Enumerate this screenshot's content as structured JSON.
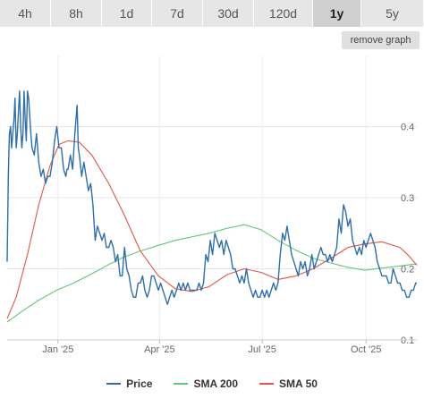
{
  "timeframe_tabs": [
    {
      "label": "4h",
      "active": false
    },
    {
      "label": "8h",
      "active": false
    },
    {
      "label": "1d",
      "active": false
    },
    {
      "label": "7d",
      "active": false
    },
    {
      "label": "30d",
      "active": false
    },
    {
      "label": "120d",
      "active": false
    },
    {
      "label": "1y",
      "active": true
    },
    {
      "label": "5y",
      "active": false
    }
  ],
  "remove_graph_label": "remove graph",
  "colors": {
    "price": "#2f6ea8",
    "sma200": "#63c77a",
    "sma50": "#e05547"
  },
  "chart_data": {
    "type": "line",
    "ylim": [
      0.1,
      0.5
    ],
    "yticks": [
      0.1,
      0.2,
      0.3,
      0.4
    ],
    "ytick_labels": [
      "0.1",
      "0.2",
      "0.3",
      "0.4"
    ],
    "xlim": [
      "2024-11-17",
      "2025-11-15"
    ],
    "xticks": [
      "2025-01-01",
      "2025-04-01",
      "2025-07-01",
      "2025-10-01"
    ],
    "xtick_labels": [
      "Jan '25",
      "Apr '25",
      "Jul '25",
      "Oct '25"
    ],
    "grid": true,
    "legend": "bottom",
    "series": [
      {
        "name": "Price",
        "color": "#2f6ea8",
        "points": [
          [
            "2024-11-17",
            0.21
          ],
          [
            "2024-11-18",
            0.33
          ],
          [
            "2024-11-19",
            0.39
          ],
          [
            "2024-11-20",
            0.4
          ],
          [
            "2024-11-21",
            0.37
          ],
          [
            "2024-11-22",
            0.39
          ],
          [
            "2024-11-23",
            0.41
          ],
          [
            "2024-11-24",
            0.44
          ],
          [
            "2024-11-25",
            0.37
          ],
          [
            "2024-11-26",
            0.39
          ],
          [
            "2024-11-27",
            0.42
          ],
          [
            "2024-11-28",
            0.45
          ],
          [
            "2024-11-29",
            0.4
          ],
          [
            "2024-11-30",
            0.37
          ],
          [
            "2024-12-01",
            0.39
          ],
          [
            "2024-12-02",
            0.45
          ],
          [
            "2024-12-03",
            0.41
          ],
          [
            "2024-12-04",
            0.38
          ],
          [
            "2024-12-05",
            0.45
          ],
          [
            "2024-12-06",
            0.44
          ],
          [
            "2024-12-08",
            0.39
          ],
          [
            "2024-12-09",
            0.37
          ],
          [
            "2024-12-11",
            0.36
          ],
          [
            "2024-12-13",
            0.39
          ],
          [
            "2024-12-15",
            0.35
          ],
          [
            "2024-12-17",
            0.33
          ],
          [
            "2024-12-19",
            0.34
          ],
          [
            "2024-12-21",
            0.32
          ],
          [
            "2024-12-23",
            0.33
          ],
          [
            "2024-12-25",
            0.33
          ],
          [
            "2024-12-27",
            0.35
          ],
          [
            "2024-12-29",
            0.38
          ],
          [
            "2024-12-31",
            0.4
          ],
          [
            "2025-01-02",
            0.37
          ],
          [
            "2025-01-04",
            0.37
          ],
          [
            "2025-01-06",
            0.34
          ],
          [
            "2025-01-08",
            0.33
          ],
          [
            "2025-01-09",
            0.34
          ],
          [
            "2025-01-10",
            0.34
          ],
          [
            "2025-01-12",
            0.36
          ],
          [
            "2025-01-14",
            0.34
          ],
          [
            "2025-01-16",
            0.39
          ],
          [
            "2025-01-18",
            0.43
          ],
          [
            "2025-01-19",
            0.37
          ],
          [
            "2025-01-20",
            0.36
          ],
          [
            "2025-01-22",
            0.33
          ],
          [
            "2025-01-24",
            0.35
          ],
          [
            "2025-01-26",
            0.33
          ],
          [
            "2025-01-28",
            0.31
          ],
          [
            "2025-01-30",
            0.32
          ],
          [
            "2025-02-01",
            0.29
          ],
          [
            "2025-02-03",
            0.24
          ],
          [
            "2025-02-05",
            0.26
          ],
          [
            "2025-02-07",
            0.25
          ],
          [
            "2025-02-09",
            0.24
          ],
          [
            "2025-02-11",
            0.25
          ],
          [
            "2025-02-13",
            0.23
          ],
          [
            "2025-02-15",
            0.23
          ],
          [
            "2025-02-17",
            0.24
          ],
          [
            "2025-02-19",
            0.23
          ],
          [
            "2025-02-21",
            0.21
          ],
          [
            "2025-02-23",
            0.22
          ],
          [
            "2025-02-25",
            0.19
          ],
          [
            "2025-02-27",
            0.19
          ],
          [
            "2025-03-01",
            0.23
          ],
          [
            "2025-03-03",
            0.2
          ],
          [
            "2025-03-05",
            0.19
          ],
          [
            "2025-03-07",
            0.17
          ],
          [
            "2025-03-09",
            0.16
          ],
          [
            "2025-03-11",
            0.16
          ],
          [
            "2025-03-13",
            0.18
          ],
          [
            "2025-03-15",
            0.18
          ],
          [
            "2025-03-17",
            0.19
          ],
          [
            "2025-03-19",
            0.17
          ],
          [
            "2025-03-21",
            0.16
          ],
          [
            "2025-03-23",
            0.17
          ],
          [
            "2025-03-25",
            0.19
          ],
          [
            "2025-03-27",
            0.19
          ],
          [
            "2025-03-29",
            0.18
          ],
          [
            "2025-03-31",
            0.17
          ],
          [
            "2025-04-02",
            0.18
          ],
          [
            "2025-04-04",
            0.17
          ],
          [
            "2025-04-06",
            0.16
          ],
          [
            "2025-04-08",
            0.15
          ],
          [
            "2025-04-10",
            0.16
          ],
          [
            "2025-04-12",
            0.17
          ],
          [
            "2025-04-14",
            0.16
          ],
          [
            "2025-04-16",
            0.17
          ],
          [
            "2025-04-18",
            0.18
          ],
          [
            "2025-04-20",
            0.17
          ],
          [
            "2025-04-22",
            0.18
          ],
          [
            "2025-04-24",
            0.17
          ],
          [
            "2025-04-26",
            0.18
          ],
          [
            "2025-04-28",
            0.17
          ],
          [
            "2025-04-30",
            0.17
          ],
          [
            "2025-05-02",
            0.17
          ],
          [
            "2025-05-04",
            0.17
          ],
          [
            "2025-05-06",
            0.18
          ],
          [
            "2025-05-08",
            0.17
          ],
          [
            "2025-05-10",
            0.18
          ],
          [
            "2025-05-12",
            0.22
          ],
          [
            "2025-05-14",
            0.21
          ],
          [
            "2025-05-16",
            0.24
          ],
          [
            "2025-05-18",
            0.22
          ],
          [
            "2025-05-20",
            0.25
          ],
          [
            "2025-05-22",
            0.24
          ],
          [
            "2025-05-24",
            0.23
          ],
          [
            "2025-05-26",
            0.24
          ],
          [
            "2025-05-28",
            0.22
          ],
          [
            "2025-05-30",
            0.24
          ],
          [
            "2025-06-01",
            0.23
          ],
          [
            "2025-06-03",
            0.22
          ],
          [
            "2025-06-05",
            0.2
          ],
          [
            "2025-06-07",
            0.2
          ],
          [
            "2025-06-09",
            0.19
          ],
          [
            "2025-06-11",
            0.18
          ],
          [
            "2025-06-13",
            0.19
          ],
          [
            "2025-06-15",
            0.18
          ],
          [
            "2025-06-17",
            0.2
          ],
          [
            "2025-06-19",
            0.18
          ],
          [
            "2025-06-21",
            0.17
          ],
          [
            "2025-06-23",
            0.16
          ],
          [
            "2025-06-25",
            0.17
          ],
          [
            "2025-06-27",
            0.16
          ],
          [
            "2025-06-29",
            0.16
          ],
          [
            "2025-07-01",
            0.17
          ],
          [
            "2025-07-03",
            0.16
          ],
          [
            "2025-07-05",
            0.17
          ],
          [
            "2025-07-07",
            0.16
          ],
          [
            "2025-07-09",
            0.17
          ],
          [
            "2025-07-11",
            0.18
          ],
          [
            "2025-07-13",
            0.17
          ],
          [
            "2025-07-15",
            0.18
          ],
          [
            "2025-07-17",
            0.22
          ],
          [
            "2025-07-19",
            0.25
          ],
          [
            "2025-07-21",
            0.24
          ],
          [
            "2025-07-23",
            0.26
          ],
          [
            "2025-07-25",
            0.24
          ],
          [
            "2025-07-27",
            0.22
          ],
          [
            "2025-07-29",
            0.21
          ],
          [
            "2025-07-31",
            0.2
          ],
          [
            "2025-08-02",
            0.19
          ],
          [
            "2025-08-04",
            0.21
          ],
          [
            "2025-08-06",
            0.2
          ],
          [
            "2025-08-08",
            0.21
          ],
          [
            "2025-08-10",
            0.19
          ],
          [
            "2025-08-12",
            0.2
          ],
          [
            "2025-08-14",
            0.22
          ],
          [
            "2025-08-16",
            0.2
          ],
          [
            "2025-08-18",
            0.21
          ],
          [
            "2025-08-20",
            0.22
          ],
          [
            "2025-08-22",
            0.23
          ],
          [
            "2025-08-24",
            0.22
          ],
          [
            "2025-08-26",
            0.22
          ],
          [
            "2025-08-28",
            0.21
          ],
          [
            "2025-08-30",
            0.22
          ],
          [
            "2025-09-01",
            0.21
          ],
          [
            "2025-09-03",
            0.22
          ],
          [
            "2025-09-05",
            0.23
          ],
          [
            "2025-09-07",
            0.27
          ],
          [
            "2025-09-09",
            0.25
          ],
          [
            "2025-09-11",
            0.29
          ],
          [
            "2025-09-13",
            0.28
          ],
          [
            "2025-09-15",
            0.26
          ],
          [
            "2025-09-17",
            0.27
          ],
          [
            "2025-09-19",
            0.24
          ],
          [
            "2025-09-21",
            0.23
          ],
          [
            "2025-09-23",
            0.22
          ],
          [
            "2025-09-25",
            0.23
          ],
          [
            "2025-09-27",
            0.22
          ],
          [
            "2025-09-29",
            0.24
          ],
          [
            "2025-10-01",
            0.23
          ],
          [
            "2025-10-03",
            0.24
          ],
          [
            "2025-10-05",
            0.25
          ],
          [
            "2025-10-07",
            0.24
          ],
          [
            "2025-10-09",
            0.23
          ],
          [
            "2025-10-11",
            0.21
          ],
          [
            "2025-10-13",
            0.2
          ],
          [
            "2025-10-15",
            0.19
          ],
          [
            "2025-10-17",
            0.19
          ],
          [
            "2025-10-19",
            0.19
          ],
          [
            "2025-10-21",
            0.18
          ],
          [
            "2025-10-23",
            0.18
          ],
          [
            "2025-10-25",
            0.2
          ],
          [
            "2025-10-27",
            0.19
          ],
          [
            "2025-10-29",
            0.18
          ],
          [
            "2025-10-31",
            0.18
          ],
          [
            "2025-11-02",
            0.17
          ],
          [
            "2025-11-04",
            0.17
          ],
          [
            "2025-11-06",
            0.16
          ],
          [
            "2025-11-08",
            0.16
          ],
          [
            "2025-11-10",
            0.17
          ],
          [
            "2025-11-12",
            0.17
          ],
          [
            "2025-11-14",
            0.18
          ],
          [
            "2025-11-15",
            0.18
          ]
        ]
      },
      {
        "name": "SMA 200",
        "color": "#63c77a",
        "points": [
          [
            "2024-11-17",
            0.125
          ],
          [
            "2024-11-30",
            0.14
          ],
          [
            "2024-12-15",
            0.156
          ],
          [
            "2024-12-31",
            0.17
          ],
          [
            "2025-01-15",
            0.18
          ],
          [
            "2025-01-31",
            0.193
          ],
          [
            "2025-02-15",
            0.206
          ],
          [
            "2025-03-01",
            0.217
          ],
          [
            "2025-03-15",
            0.225
          ],
          [
            "2025-03-31",
            0.233
          ],
          [
            "2025-04-15",
            0.24
          ],
          [
            "2025-04-30",
            0.245
          ],
          [
            "2025-05-15",
            0.25
          ],
          [
            "2025-05-31",
            0.257
          ],
          [
            "2025-06-15",
            0.262
          ],
          [
            "2025-06-30",
            0.255
          ],
          [
            "2025-07-15",
            0.24
          ],
          [
            "2025-07-31",
            0.226
          ],
          [
            "2025-08-15",
            0.215
          ],
          [
            "2025-08-31",
            0.208
          ],
          [
            "2025-09-15",
            0.202
          ],
          [
            "2025-09-30",
            0.198
          ],
          [
            "2025-10-15",
            0.201
          ],
          [
            "2025-10-31",
            0.204
          ],
          [
            "2025-11-15",
            0.207
          ]
        ]
      },
      {
        "name": "SMA 50",
        "color": "#e05547",
        "points": [
          [
            "2024-11-17",
            0.13
          ],
          [
            "2024-11-25",
            0.16
          ],
          [
            "2024-12-05",
            0.22
          ],
          [
            "2024-12-15",
            0.29
          ],
          [
            "2024-12-25",
            0.345
          ],
          [
            "2025-01-02",
            0.375
          ],
          [
            "2025-01-10",
            0.38
          ],
          [
            "2025-01-20",
            0.378
          ],
          [
            "2025-01-31",
            0.36
          ],
          [
            "2025-02-15",
            0.32
          ],
          [
            "2025-03-01",
            0.275
          ],
          [
            "2025-03-15",
            0.225
          ],
          [
            "2025-03-31",
            0.19
          ],
          [
            "2025-04-15",
            0.172
          ],
          [
            "2025-04-30",
            0.168
          ],
          [
            "2025-05-15",
            0.175
          ],
          [
            "2025-05-31",
            0.192
          ],
          [
            "2025-06-15",
            0.2
          ],
          [
            "2025-06-30",
            0.195
          ],
          [
            "2025-07-15",
            0.185
          ],
          [
            "2025-07-31",
            0.19
          ],
          [
            "2025-08-15",
            0.2
          ],
          [
            "2025-08-31",
            0.215
          ],
          [
            "2025-09-15",
            0.23
          ],
          [
            "2025-09-30",
            0.235
          ],
          [
            "2025-10-15",
            0.238
          ],
          [
            "2025-10-31",
            0.23
          ],
          [
            "2025-11-08",
            0.218
          ],
          [
            "2025-11-15",
            0.205
          ]
        ]
      }
    ]
  }
}
